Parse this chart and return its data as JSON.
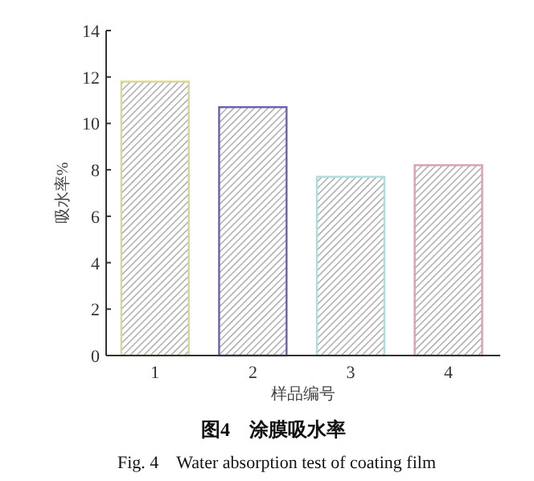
{
  "chart_data": {
    "type": "bar",
    "title": "图4　涂膜吸水率",
    "subtitle": "Fig. 4　Water absorption test of coating film",
    "xlabel": "样品编号",
    "ylabel": "吸水率%",
    "categories": [
      "1",
      "2",
      "3",
      "4"
    ],
    "values": [
      11.8,
      10.7,
      7.7,
      8.2
    ],
    "colors": [
      "#d8d890",
      "#6a60b0",
      "#a8e0dc",
      "#d8a0b0"
    ],
    "ylim": [
      0,
      14
    ],
    "yticks": [
      0,
      2,
      4,
      6,
      8,
      10,
      12,
      14
    ]
  }
}
